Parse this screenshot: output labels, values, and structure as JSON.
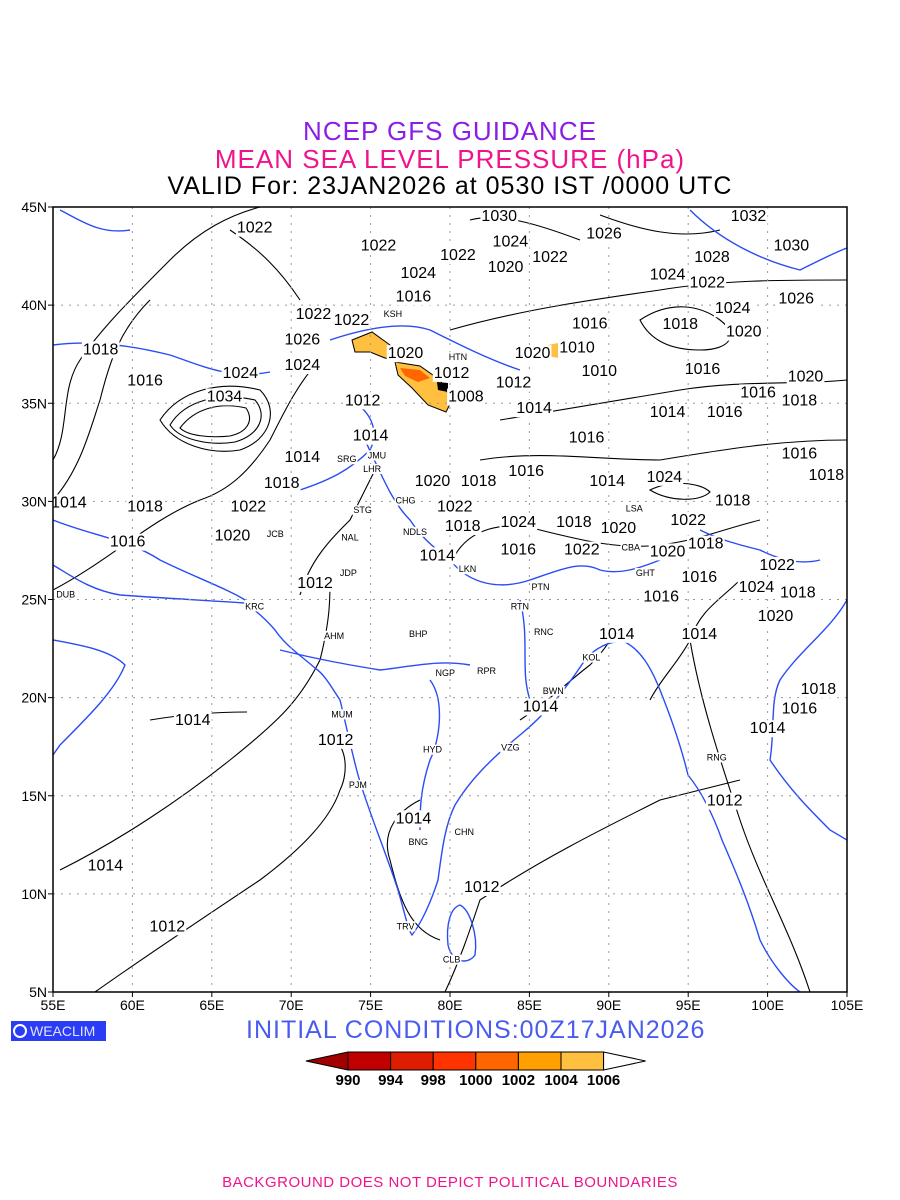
{
  "title": {
    "line1": "NCEP GFS GUIDANCE",
    "line2": "MEAN SEA LEVEL PRESSURE (hPa)",
    "line3": "VALID For: 23JAN2026 at 0530 IST /0000 UTC"
  },
  "colors": {
    "title1": "#8a1ee6",
    "title2": "#f0148c",
    "coast": "#2a4cf5",
    "contour": "#000000",
    "initial": "#4a5cf0"
  },
  "axes": {
    "lon_labels": [
      "55E",
      "60E",
      "65E",
      "70E",
      "75E",
      "80E",
      "85E",
      "90E",
      "95E",
      "100E",
      "105E"
    ],
    "lat_labels": [
      "5N",
      "10N",
      "15N",
      "20N",
      "25N",
      "30N",
      "35N",
      "40N",
      "45N"
    ],
    "lon_range": [
      55,
      105
    ],
    "lat_range": [
      5,
      45
    ]
  },
  "logo": "WEACLIM",
  "initial_conditions": "INITIAL  CONDITIONS:00Z17JAN2026",
  "colorbar": {
    "labels": [
      "990",
      "994",
      "998",
      "1000",
      "1002",
      "1004",
      "1006"
    ],
    "colors": [
      "#a00000",
      "#c00000",
      "#dd1c00",
      "#ff3300",
      "#ff6600",
      "#ffa000",
      "#ffc040",
      "#ffffff"
    ]
  },
  "footer": "BACKGROUND DOES NOT DEPICT POLITICAL BOUNDARIES",
  "cities": [
    {
      "code": "DUB",
      "lon": 55.8,
      "lat": 25.3
    },
    {
      "code": "KRC",
      "lon": 67.7,
      "lat": 24.7
    },
    {
      "code": "AHM",
      "lon": 72.7,
      "lat": 23.2
    },
    {
      "code": "JCB",
      "lon": 69.0,
      "lat": 28.4
    },
    {
      "code": "JDP",
      "lon": 73.6,
      "lat": 26.4
    },
    {
      "code": "NAL",
      "lon": 73.7,
      "lat": 28.2
    },
    {
      "code": "STG",
      "lon": 74.5,
      "lat": 29.6
    },
    {
      "code": "SRG",
      "lon": 73.5,
      "lat": 32.2
    },
    {
      "code": "LHR",
      "lon": 75.1,
      "lat": 31.7
    },
    {
      "code": "JMU",
      "lon": 75.4,
      "lat": 32.8
    },
    {
      "code": "CHG",
      "lon": 77.2,
      "lat": 30.5
    },
    {
      "code": "NDLS",
      "lon": 77.8,
      "lat": 28.5
    },
    {
      "code": "LKN",
      "lon": 81.1,
      "lat": 26.6
    },
    {
      "code": "BHP",
      "lon": 78.0,
      "lat": 23.3
    },
    {
      "code": "PTN",
      "lon": 85.7,
      "lat": 25.7
    },
    {
      "code": "RTN",
      "lon": 84.4,
      "lat": 24.7
    },
    {
      "code": "RNC",
      "lon": 85.9,
      "lat": 23.4
    },
    {
      "code": "KOL",
      "lon": 88.9,
      "lat": 22.5
    },
    {
      "code": "GHT",
      "lon": 92.3,
      "lat": 26.4
    },
    {
      "code": "BWN",
      "lon": 86.5,
      "lat": 20.4
    },
    {
      "code": "NGP",
      "lon": 79.7,
      "lat": 21.3
    },
    {
      "code": "RPR",
      "lon": 82.3,
      "lat": 21.4
    },
    {
      "code": "MUM",
      "lon": 73.2,
      "lat": 19.2
    },
    {
      "code": "HYD",
      "lon": 78.9,
      "lat": 17.4
    },
    {
      "code": "VZG",
      "lon": 83.8,
      "lat": 17.5
    },
    {
      "code": "PJM",
      "lon": 74.2,
      "lat": 15.6
    },
    {
      "code": "CHN",
      "lon": 80.9,
      "lat": 13.2
    },
    {
      "code": "BNG",
      "lon": 78.0,
      "lat": 12.7
    },
    {
      "code": "TRV",
      "lon": 77.2,
      "lat": 8.4
    },
    {
      "code": "CLB",
      "lon": 80.1,
      "lat": 6.7
    },
    {
      "code": "RNG",
      "lon": 96.8,
      "lat": 17.0
    },
    {
      "code": "CBA",
      "lon": 93.4,
      "lat": 27.7
    },
    {
      "code": "LSA",
      "lon": 91.6,
      "lat": 29.7
    },
    {
      "code": "HTN",
      "lon": 80.5,
      "lat": 37.4
    },
    {
      "code": "KSH",
      "lon": 76.4,
      "lat": 39.6
    }
  ],
  "contour_labels": [
    {
      "v": "1022",
      "lon": 67.7,
      "lat": 44.0
    },
    {
      "v": "1022",
      "lon": 75.5,
      "lat": 43.1
    },
    {
      "v": "1030",
      "lon": 83.1,
      "lat": 44.6
    },
    {
      "v": "1024",
      "lon": 83.8,
      "lat": 43.3
    },
    {
      "v": "1026",
      "lon": 89.7,
      "lat": 43.7
    },
    {
      "v": "1032",
      "lon": 98.8,
      "lat": 44.6
    },
    {
      "v": "1030",
      "lon": 101.5,
      "lat": 43.1
    },
    {
      "v": "1022",
      "lon": 80.5,
      "lat": 42.6
    },
    {
      "v": "1020",
      "lon": 83.5,
      "lat": 42.0
    },
    {
      "v": "1022",
      "lon": 86.3,
      "lat": 42.5
    },
    {
      "v": "1024",
      "lon": 78.0,
      "lat": 41.7
    },
    {
      "v": "1016",
      "lon": 77.7,
      "lat": 40.5
    },
    {
      "v": "1028",
      "lon": 96.5,
      "lat": 42.5
    },
    {
      "v": "1024",
      "lon": 93.7,
      "lat": 41.6
    },
    {
      "v": "1022",
      "lon": 96.2,
      "lat": 41.6
    },
    {
      "v": "1024",
      "lon": 97.8,
      "lat": 40.3
    },
    {
      "v": "1026",
      "lon": 101.8,
      "lat": 40.4
    },
    {
      "v": "1018",
      "lon": 58.0,
      "lat": 37.8
    },
    {
      "v": "1016",
      "lon": 60.8,
      "lat": 36.2
    },
    {
      "v": "1022",
      "lon": 71.4,
      "lat": 39.6
    },
    {
      "v": "1022",
      "lon": 73.8,
      "lat": 39.3
    },
    {
      "v": "1026",
      "lon": 70.7,
      "lat": 38.3
    },
    {
      "v": "1024",
      "lon": 66.8,
      "lat": 36.6
    },
    {
      "v": "1024",
      "lon": 70.7,
      "lat": 37.0
    },
    {
      "v": "1034",
      "lon": 65.8,
      "lat": 35.4
    },
    {
      "v": "1020",
      "lon": 77.2,
      "lat": 37.6
    },
    {
      "v": "1012",
      "lon": 80.1,
      "lat": 36.6
    },
    {
      "v": "1008",
      "lon": 81.0,
      "lat": 35.8
    },
    {
      "v": "1020",
      "lon": 85.2,
      "lat": 37.6
    },
    {
      "v": "1010",
      "lon": 88.0,
      "lat": 37.9
    },
    {
      "v": "1012",
      "lon": 84.0,
      "lat": 36.1
    },
    {
      "v": "1016",
      "lon": 88.8,
      "lat": 38.7
    },
    {
      "v": "1018",
      "lon": 94.5,
      "lat": 39.1
    },
    {
      "v": "1020",
      "lon": 98.5,
      "lat": 38.7
    },
    {
      "v": "1010",
      "lon": 89.4,
      "lat": 36.7
    },
    {
      "v": "1016",
      "lon": 95.9,
      "lat": 36.8
    },
    {
      "v": "1014",
      "lon": 85.3,
      "lat": 34.8
    },
    {
      "v": "1014",
      "lon": 93.7,
      "lat": 34.6
    },
    {
      "v": "1016",
      "lon": 97.3,
      "lat": 34.6
    },
    {
      "v": "1016",
      "lon": 99.4,
      "lat": 35.2
    },
    {
      "v": "1018",
      "lon": 101.5,
      "lat": 35.2
    },
    {
      "v": "1020",
      "lon": 103.9,
      "lat": 35.2
    },
    {
      "v": "1016",
      "lon": 88.6,
      "lat": 33.3
    },
    {
      "v": "1016",
      "lon": 102.0,
      "lat": 32.5
    },
    {
      "v": "1018",
      "lon": 103.7,
      "lat": 31.4
    },
    {
      "v": "1012",
      "lon": 74.5,
      "lat": 35.2
    },
    {
      "v": "1014",
      "lon": 75.0,
      "lat": 33.4
    },
    {
      "v": "1014",
      "lon": 70.7,
      "lat": 32.3
    },
    {
      "v": "1018",
      "lon": 69.4,
      "lat": 31.4
    },
    {
      "v": "1022",
      "lon": 67.3,
      "lat": 30.2
    },
    {
      "v": "1020",
      "lon": 78.9,
      "lat": 31.1
    },
    {
      "v": "1018",
      "lon": 81.8,
      "lat": 31.1
    },
    {
      "v": "1016",
      "lon": 84.8,
      "lat": 31.6
    },
    {
      "v": "1014",
      "lon": 89.9,
      "lat": 31.1
    },
    {
      "v": "1024",
      "lon": 93.5,
      "lat": 31.3
    },
    {
      "v": "1022",
      "lon": 80.3,
      "lat": 30.2
    },
    {
      "v": "1018",
      "lon": 80.8,
      "lat": 29.2
    },
    {
      "v": "1024",
      "lon": 84.3,
      "lat": 29.0
    },
    {
      "v": "1018",
      "lon": 87.8,
      "lat": 29.0
    },
    {
      "v": "1020",
      "lon": 90.1,
      "lat": 28.7
    },
    {
      "v": "1022",
      "lon": 88.3,
      "lat": 28.0
    },
    {
      "v": "1016",
      "lon": 84.3,
      "lat": 27.6
    },
    {
      "v": "1020",
      "lon": 93.7,
      "lat": 27.5
    },
    {
      "v": "1022",
      "lon": 95.0,
      "lat": 29.1
    },
    {
      "v": "1018",
      "lon": 95.6,
      "lat": 28.3
    },
    {
      "v": "1018",
      "lon": 97.8,
      "lat": 30.1
    },
    {
      "v": "1014",
      "lon": 56.0,
      "lat": 30.0
    },
    {
      "v": "1018",
      "lon": 60.8,
      "lat": 29.8
    },
    {
      "v": "1016",
      "lon": 59.7,
      "lat": 28.0
    },
    {
      "v": "1020",
      "lon": 66.3,
      "lat": 28.3
    },
    {
      "v": "1012",
      "lon": 71.5,
      "lat": 25.9
    },
    {
      "v": "1014",
      "lon": 79.2,
      "lat": 27.3
    },
    {
      "v": "1016",
      "lon": 95.7,
      "lat": 26.2
    },
    {
      "v": "1024",
      "lon": 99.3,
      "lat": 25.7
    },
    {
      "v": "1022",
      "lon": 100.6,
      "lat": 26.4
    },
    {
      "v": "1018",
      "lon": 101.4,
      "lat": 25.4
    },
    {
      "v": "1020",
      "lon": 100.5,
      "lat": 24.2
    },
    {
      "v": "1016",
      "lon": 93.3,
      "lat": 25.2
    },
    {
      "v": "1014",
      "lon": 90.5,
      "lat": 23.3
    },
    {
      "v": "1014",
      "lon": 95.7,
      "lat": 23.3
    },
    {
      "v": "1014",
      "lon": 85.7,
      "lat": 19.6
    },
    {
      "v": "1018",
      "lon": 103.2,
      "lat": 20.5
    },
    {
      "v": "1016",
      "lon": 102.0,
      "lat": 19.9
    },
    {
      "v": "1014",
      "lon": 100.0,
      "lat": 18.9
    },
    {
      "v": "1014",
      "lon": 63.8,
      "lat": 18.9
    },
    {
      "v": "1012",
      "lon": 72.8,
      "lat": 17.9
    },
    {
      "v": "1014",
      "lon": 77.7,
      "lat": 13.9
    },
    {
      "v": "1012",
      "lon": 97.3,
      "lat": 14.8
    },
    {
      "v": "1012",
      "lon": 82.0,
      "lat": 10.4
    },
    {
      "v": "1014",
      "lon": 58.3,
      "lat": 11.5
    },
    {
      "v": "1012",
      "lon": 62.2,
      "lat": 8.4
    }
  ]
}
